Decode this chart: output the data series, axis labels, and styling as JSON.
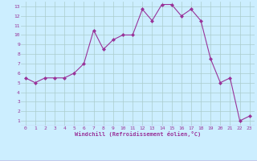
{
  "x": [
    0,
    1,
    2,
    3,
    4,
    5,
    6,
    7,
    8,
    9,
    10,
    11,
    12,
    13,
    14,
    15,
    16,
    17,
    18,
    19,
    20,
    21,
    22,
    23
  ],
  "y": [
    5.5,
    5.0,
    5.5,
    5.5,
    5.5,
    6.0,
    7.0,
    10.5,
    8.5,
    9.5,
    10.0,
    10.0,
    12.7,
    11.5,
    13.2,
    13.2,
    12.0,
    12.7,
    11.5,
    7.5,
    5.0,
    5.5,
    1.0,
    1.5
  ],
  "line_color": "#993399",
  "marker": "D",
  "marker_size": 2,
  "bg_color": "#cceeff",
  "grid_color": "#aacccc",
  "xlabel": "Windchill (Refroidissement éolien,°C)",
  "xlabel_color": "#993399",
  "tick_color": "#993399",
  "ylabel_ticks": [
    1,
    2,
    3,
    4,
    5,
    6,
    7,
    8,
    9,
    10,
    11,
    12,
    13
  ],
  "xlim": [
    -0.5,
    23.5
  ],
  "ylim": [
    0.5,
    13.5
  ],
  "figsize": [
    3.2,
    2.0
  ],
  "dpi": 100
}
